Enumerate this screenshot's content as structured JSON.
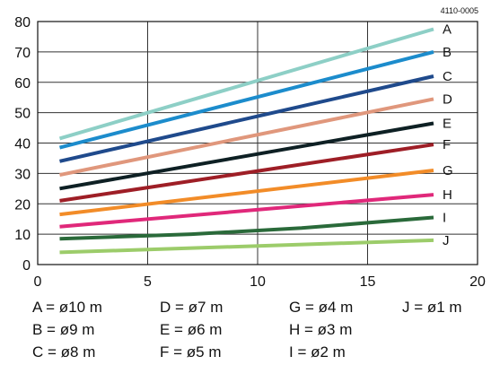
{
  "figure_code": "4110-0005",
  "chart_data": {
    "type": "line",
    "xlim": [
      0,
      20
    ],
    "ylim": [
      0,
      80
    ],
    "x_ticks": [
      "0",
      "5",
      "10",
      "15",
      "20"
    ],
    "y_ticks": [
      "0",
      "10",
      "20",
      "30",
      "40",
      "50",
      "60",
      "70",
      "80"
    ],
    "grid": true,
    "series": [
      {
        "name": "A",
        "color": "#8dcfc6",
        "x": [
          1,
          18
        ],
        "y": [
          41.5,
          77.5
        ]
      },
      {
        "name": "B",
        "color": "#1c8ccc",
        "x": [
          1,
          18
        ],
        "y": [
          38.5,
          70
        ]
      },
      {
        "name": "C",
        "color": "#1f4a8c",
        "x": [
          1,
          18
        ],
        "y": [
          34,
          62
        ]
      },
      {
        "name": "D",
        "color": "#e0977c",
        "x": [
          1,
          18
        ],
        "y": [
          29.5,
          54.5
        ]
      },
      {
        "name": "E",
        "color": "#0e2024",
        "x": [
          1,
          18
        ],
        "y": [
          25,
          46.5
        ]
      },
      {
        "name": "F",
        "color": "#9e1e26",
        "x": [
          1,
          18
        ],
        "y": [
          21,
          39.5
        ]
      },
      {
        "name": "G",
        "color": "#f28c28",
        "x": [
          1,
          18
        ],
        "y": [
          16.5,
          31
        ]
      },
      {
        "name": "H",
        "color": "#e0287a",
        "x": [
          1,
          18
        ],
        "y": [
          12.5,
          23
        ]
      },
      {
        "name": "I",
        "color": "#2a6a3a",
        "x": [
          1,
          7,
          12,
          18
        ],
        "y": [
          8.5,
          10,
          12,
          15.5
        ]
      },
      {
        "name": "J",
        "color": "#9ccc6a",
        "x": [
          1,
          18
        ],
        "y": [
          4,
          8
        ]
      }
    ],
    "legend": [
      [
        "A = ø10 m",
        "D = ø7 m",
        "G = ø4 m",
        "J = ø1 m"
      ],
      [
        "B = ø9 m",
        "E = ø6 m",
        "H = ø3 m"
      ],
      [
        "C = ø8 m",
        "F = ø5 m",
        "I = ø2 m"
      ]
    ]
  }
}
